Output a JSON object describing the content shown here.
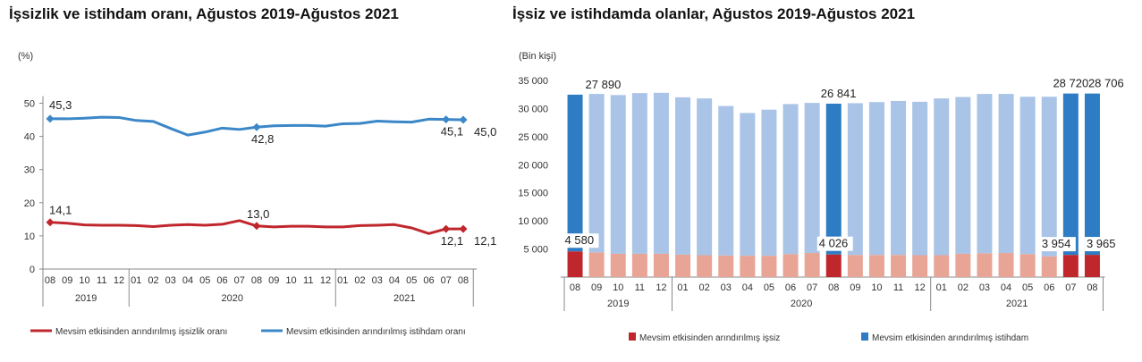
{
  "charts": {
    "left_title": "İşsizlik ve istihdam oranı, Ağustos 2019-Ağustos 2021",
    "right_title": "İşsiz ve istihdamda olanlar, Ağustos 2019-Ağustos 2021"
  },
  "chart_data": [
    {
      "type": "line",
      "title": "İşsizlik ve istihdam oranı, Ağustos 2019-Ağustos 2021",
      "unit": "(%)",
      "ylim": [
        0,
        50
      ],
      "yticks": [
        "0",
        "10",
        "20",
        "30",
        "40",
        "50"
      ],
      "categories": [
        "08",
        "09",
        "10",
        "11",
        "12",
        "01",
        "02",
        "03",
        "04",
        "05",
        "06",
        "07",
        "08",
        "09",
        "10",
        "11",
        "12",
        "01",
        "02",
        "03",
        "04",
        "05",
        "06",
        "07",
        "08"
      ],
      "years": [
        "2019",
        "2020",
        "2021"
      ],
      "colors": {
        "unemployment": "#c0272d",
        "employment": "#3b87c8"
      },
      "series": [
        {
          "name": "Mevsim etkisinden arındırılmış işsizlik oranı",
          "values": [
            14.1,
            13.8,
            13.3,
            13.2,
            13.2,
            13.1,
            12.8,
            13.2,
            13.4,
            13.2,
            13.5,
            14.6,
            13.0,
            12.7,
            12.9,
            12.9,
            12.7,
            12.7,
            13.1,
            13.2,
            13.4,
            12.4,
            10.7,
            12.1,
            12.1
          ]
        },
        {
          "name": "Mevsim etkisinden arındırılmış istihdam oranı",
          "values": [
            45.3,
            45.3,
            45.5,
            45.8,
            45.7,
            44.8,
            44.5,
            42.4,
            40.4,
            41.3,
            42.5,
            42.1,
            42.8,
            43.2,
            43.3,
            43.3,
            43.1,
            43.8,
            43.9,
            44.6,
            44.4,
            44.3,
            45.2,
            45.1,
            45.0
          ]
        }
      ],
      "data_labels": [
        {
          "series": 1,
          "index": 0,
          "text": "45,3"
        },
        {
          "series": 1,
          "index": 12,
          "text": "42,8"
        },
        {
          "series": 1,
          "index": 23,
          "text": "45,1"
        },
        {
          "series": 1,
          "index": 24,
          "text": "45,0"
        },
        {
          "series": 0,
          "index": 0,
          "text": "14,1"
        },
        {
          "series": 0,
          "index": 12,
          "text": "13,0"
        },
        {
          "series": 0,
          "index": 23,
          "text": "12,1"
        },
        {
          "series": 0,
          "index": 24,
          "text": "12,1"
        }
      ]
    },
    {
      "type": "bar",
      "title": "İşsiz ve istihdamda olanlar, Ağustos 2019-Ağustos 2021",
      "unit": "(Bin kişi)",
      "ylim": [
        0,
        35000
      ],
      "yticks": [
        "5 000",
        "10 000",
        "15 000",
        "20 000",
        "25 000",
        "30 000",
        "35 000"
      ],
      "categories": [
        "08",
        "09",
        "10",
        "11",
        "12",
        "01",
        "02",
        "03",
        "04",
        "05",
        "06",
        "07",
        "08",
        "09",
        "10",
        "11",
        "12",
        "01",
        "02",
        "03",
        "04",
        "05",
        "06",
        "07",
        "08"
      ],
      "years": [
        "2019",
        "2020",
        "2021"
      ],
      "colors": {
        "unemployed": "#c0272d",
        "unemployed_light": "#e8a596",
        "employed": "#2e7dc4",
        "employed_light": "#a9c4e6"
      },
      "highlight_indices": [
        0,
        12,
        23,
        24
      ],
      "series": [
        {
          "name": "Mevsim etkisinden arındırılmış işsiz",
          "values": [
            4580,
            4400,
            4150,
            4150,
            4150,
            4000,
            3900,
            3850,
            3800,
            3800,
            4100,
            4300,
            4026,
            3950,
            3950,
            3950,
            3900,
            3900,
            4150,
            4250,
            4300,
            4100,
            3700,
            3954,
            3965
          ]
        },
        {
          "name": "Mevsim etkisinden arındırılmış istihdam",
          "values": [
            27890,
            28200,
            28250,
            28600,
            28650,
            28000,
            27900,
            26600,
            25400,
            26000,
            26700,
            26700,
            26841,
            27000,
            27200,
            27400,
            27300,
            27900,
            27900,
            28350,
            28300,
            28000,
            28400,
            28720,
            28706
          ]
        }
      ],
      "data_labels": [
        {
          "index": 0,
          "employed": "27 890",
          "unemployed": "4 580"
        },
        {
          "index": 12,
          "employed": "26 841",
          "unemployed": "4 026"
        },
        {
          "index": 23,
          "employed": "28 720",
          "unemployed": "3 954"
        },
        {
          "index": 24,
          "employed": "28 706",
          "unemployed": "3 965"
        }
      ]
    }
  ]
}
